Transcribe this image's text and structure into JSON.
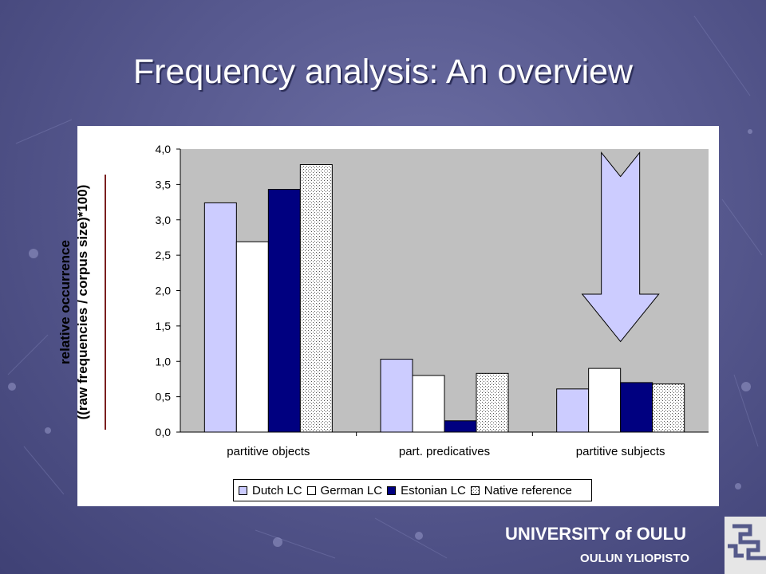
{
  "slide": {
    "title": "Frequency analysis: An overview",
    "footer_university": "UNIVERSITY of OULU",
    "footer_sub": "OULUN YLIOPISTO"
  },
  "chart_data": {
    "type": "bar",
    "categories": [
      "partitive objects",
      "part. predicatives",
      "partitive subjects"
    ],
    "series": [
      {
        "name": "Dutch LC",
        "values": [
          3.24,
          1.03,
          0.61
        ],
        "color": "#ccccff",
        "pattern": "solid"
      },
      {
        "name": "German LC",
        "values": [
          2.69,
          0.8,
          0.9
        ],
        "color": "#ffffff",
        "pattern": "solid"
      },
      {
        "name": "Estonian LC",
        "values": [
          3.43,
          0.16,
          0.7
        ],
        "color": "#000080",
        "pattern": "solid"
      },
      {
        "name": "Native reference",
        "values": [
          3.78,
          0.83,
          0.68
        ],
        "color": "#ffffff",
        "pattern": "dotted"
      }
    ],
    "ylabel_line1": "relative occurrence",
    "ylabel_line2": "((raw frequencies / corpus size)*100)",
    "ylim": [
      0,
      4
    ],
    "yticks": [
      "0,0",
      "0,5",
      "1,0",
      "1,5",
      "2,0",
      "2,5",
      "3,0",
      "3,5",
      "4,0"
    ],
    "grid": false,
    "legend_position": "bottom",
    "annotation": "down-arrow over partitive subjects"
  }
}
